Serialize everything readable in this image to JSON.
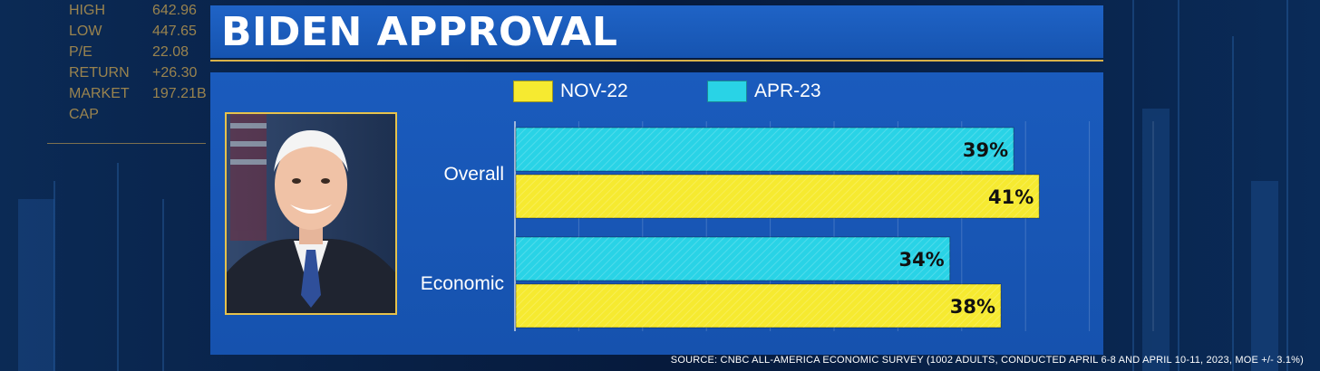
{
  "ticker": [
    {
      "label": "HIGH",
      "value": "642.96"
    },
    {
      "label": "LOW",
      "value": "447.65"
    },
    {
      "label": "P/E",
      "value": "22.08"
    },
    {
      "label": "RETURN",
      "value": "+26.30"
    },
    {
      "label": "MARKET CAP",
      "value": "197.21B"
    }
  ],
  "chart_data": {
    "type": "bar",
    "orientation": "horizontal",
    "title": "BIDEN APPROVAL",
    "categories": [
      "Overall",
      "Economic"
    ],
    "series": [
      {
        "name": "APR-23",
        "values": [
          39,
          34
        ],
        "color": "#29d3e6"
      },
      {
        "name": "NOV-22",
        "values": [
          41,
          38
        ],
        "color": "#f6ea30"
      }
    ],
    "legend_order": [
      "NOV-22",
      "APR-23"
    ],
    "value_suffix": "%",
    "xlim": [
      0,
      50
    ],
    "grid": true,
    "legend_position": "top",
    "source": "SOURCE: CNBC ALL-AMERICA ECONOMIC SURVEY (1002 ADULTS, CONDUCTED APRIL 6-8 AND APRIL 10-11, 2023, MOE +/- 3.1%)"
  }
}
